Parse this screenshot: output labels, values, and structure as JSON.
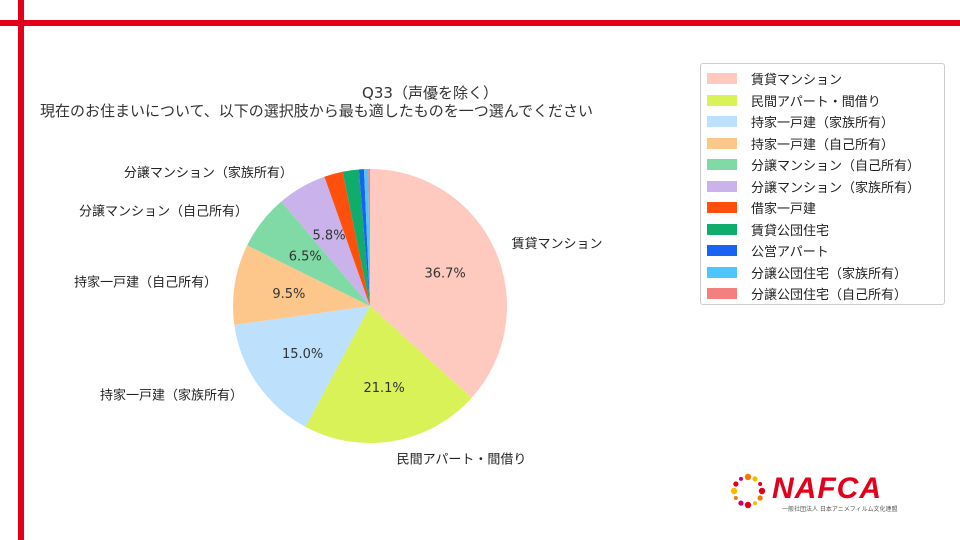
{
  "colors": {
    "frame": "#e2001a",
    "brand": "#e2001a"
  },
  "title_line1": "Q33（声優を除く）",
  "title_line2": "現在のお住まいについて、以下の選択肢から最も適したものを一つ選んでください",
  "chart_data": {
    "type": "pie",
    "title": "Q33（声優を除く） 現在のお住まいについて、以下の選択肢から最も適したものを一つ選んでください",
    "legend_position": "top-right",
    "start_angle_deg": 90,
    "direction": "clockwise",
    "slices": [
      {
        "label": "賃貸マンション",
        "value": 36.7,
        "color": "#fec9bf",
        "pct_label": "36.7%",
        "outer_label": "賃貸マンション"
      },
      {
        "label": "民間アパート・間借り",
        "value": 21.1,
        "color": "#d9f257",
        "pct_label": "21.1%",
        "outer_label": "民間アパート・間借り"
      },
      {
        "label": "持家一戸建（家族所有）",
        "value": 15.0,
        "color": "#bde0fd",
        "pct_label": "15.0%",
        "outer_label": "持家一戸建（家族所有）"
      },
      {
        "label": "持家一戸建（自己所有）",
        "value": 9.5,
        "color": "#fdc78b",
        "pct_label": "9.5%",
        "outer_label": "持家一戸建（自己所有）"
      },
      {
        "label": "分譲マンション（自己所有）",
        "value": 6.5,
        "color": "#7fdaa6",
        "pct_label": "6.5%",
        "outer_label": "分譲マンション（自己所有）"
      },
      {
        "label": "分譲マンション（家族所有）",
        "value": 5.8,
        "color": "#c9b3ea",
        "pct_label": "5.8%",
        "outer_label": "分譲マンション（家族所有）"
      },
      {
        "label": "借家一戸建",
        "value": 2.2,
        "color": "#fe4f0d",
        "pct_label": "",
        "outer_label": ""
      },
      {
        "label": "賃貸公団住宅",
        "value": 1.9,
        "color": "#10ac6b",
        "pct_label": "",
        "outer_label": ""
      },
      {
        "label": "公営アパート",
        "value": 0.6,
        "color": "#1863f2",
        "pct_label": "",
        "outer_label": ""
      },
      {
        "label": "分譲公団住宅（家族所有）",
        "value": 0.5,
        "color": "#4fc5fe",
        "pct_label": "",
        "outer_label": ""
      },
      {
        "label": "分譲公団住宅（自己所有）",
        "value": 0.2,
        "color": "#f47f7f",
        "pct_label": "",
        "outer_label": ""
      }
    ]
  },
  "logo": {
    "text": "NAFCA",
    "subtitle": "一般社団法人 日本アニメフィルム文化連盟"
  }
}
